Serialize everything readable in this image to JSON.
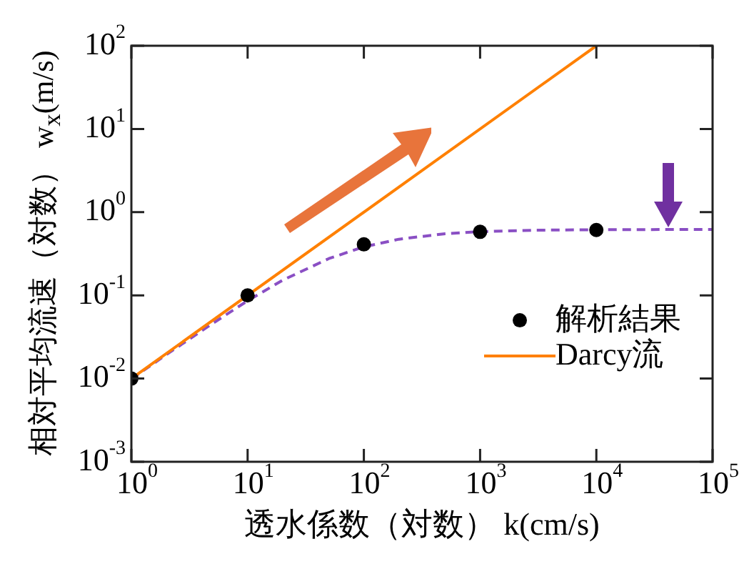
{
  "chart_data": {
    "type": "scatter",
    "xlabel": "透水係数（対数） k(cm/s)",
    "ylabel": "相対平均流速（対数） w$_{x}$(m/s)",
    "log": "xy",
    "legend": "right",
    "xlim": [
      1,
      100000
    ],
    "ylim": [
      0.001,
      100
    ],
    "xticks": [
      {
        "value": 1,
        "label": "10$^{0}$"
      },
      {
        "value": 10,
        "label": "10$^{1}$"
      },
      {
        "value": 100,
        "label": "10$^{2}$"
      },
      {
        "value": 1000,
        "label": "10$^{3}$"
      },
      {
        "value": 10000,
        "label": "10$^{4}$"
      },
      {
        "value": 100000,
        "label": "10$^{5}$"
      }
    ],
    "yticks": [
      {
        "value": 0.001,
        "label": "10$^{-3}$"
      },
      {
        "value": 0.01,
        "label": "10$^{-2}$"
      },
      {
        "value": 0.1,
        "label": "10$^{-1}$"
      },
      {
        "value": 1,
        "label": "10$^{0}$"
      },
      {
        "value": 10,
        "label": "10$^{1}$"
      },
      {
        "value": 100,
        "label": "10$^{2}$"
      }
    ],
    "series": [
      {
        "name": "解析結果",
        "marker": "circle",
        "color": "#000000",
        "x": [
          1,
          10,
          100,
          1000,
          10000
        ],
        "values": [
          0.01,
          0.1,
          0.41,
          0.58,
          0.61
        ]
      },
      {
        "name": "Darcy流",
        "type": "line",
        "color": "#ff8000",
        "x": [
          1,
          10000
        ],
        "values": [
          0.01,
          100
        ]
      },
      {
        "type": "line",
        "line_style": "dashed",
        "color": "#8a4fc4",
        "x": [
          1,
          2,
          5,
          10,
          20,
          50,
          100,
          200,
          500,
          1000,
          3000,
          10000,
          100000
        ],
        "values": [
          0.0099,
          0.0194,
          0.046,
          0.086,
          0.152,
          0.277,
          0.383,
          0.473,
          0.551,
          0.584,
          0.607,
          0.616,
          0.62
        ]
      }
    ]
  }
}
